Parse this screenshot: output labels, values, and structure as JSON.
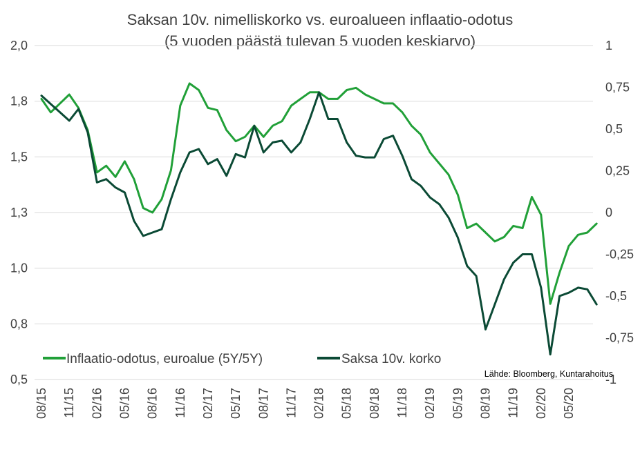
{
  "chart_data": {
    "type": "line",
    "title": "Saksan 10v. nimelliskorko vs. euroalueen inflaatio-odotus",
    "subtitle": "(5 vuoden päästä tulevan 5 vuoden keskiarvo)",
    "source": "Lähde: Bloomberg, Kuntarahoitus",
    "grid": "horizontal",
    "legend_position": "bottom",
    "x_tick_labels": [
      "08/15",
      "11/15",
      "02/16",
      "05/16",
      "08/16",
      "11/16",
      "02/17",
      "05/17",
      "08/17",
      "11/17",
      "02/18",
      "05/18",
      "08/18",
      "11/18",
      "02/19",
      "05/19",
      "08/19",
      "11/19",
      "02/20",
      "05/20"
    ],
    "y_left": {
      "ticks": [
        "2,0",
        "1,8",
        "1,5",
        "1,3",
        "1,0",
        "0,8",
        "0,5"
      ],
      "ylim": [
        0.5,
        2.0
      ]
    },
    "y_right": {
      "ticks": [
        "1",
        "0,75",
        "0,5",
        "0,25",
        "0",
        "-0,25",
        "-0,5",
        "-0,75",
        "-1"
      ],
      "ylim": [
        -1,
        1
      ]
    },
    "series": [
      {
        "name": "Inflaatio-odotus, euroalue (5Y/5Y)",
        "axis": "left",
        "color": "#21a038",
        "x": [
          "08/15",
          "09/15",
          "10/15",
          "11/15",
          "12/15",
          "01/16",
          "02/16",
          "03/16",
          "04/16",
          "05/16",
          "06/16",
          "07/16",
          "08/16",
          "09/16",
          "10/16",
          "11/16",
          "12/16",
          "01/17",
          "02/17",
          "03/17",
          "04/17",
          "05/17",
          "06/17",
          "07/17",
          "08/17",
          "09/17",
          "10/17",
          "11/17",
          "12/17",
          "01/18",
          "02/18",
          "03/18",
          "04/18",
          "05/18",
          "06/18",
          "07/18",
          "08/18",
          "09/18",
          "10/18",
          "11/18",
          "12/18",
          "01/19",
          "02/19",
          "03/19",
          "04/19",
          "05/19",
          "06/19",
          "07/19",
          "08/19",
          "09/19",
          "10/19",
          "11/19",
          "12/19",
          "01/20",
          "02/20",
          "03/20",
          "04/20",
          "05/20",
          "06/20",
          "07/20",
          "08/20"
        ],
        "y": [
          1.76,
          1.7,
          1.74,
          1.78,
          1.72,
          1.62,
          1.43,
          1.46,
          1.41,
          1.48,
          1.4,
          1.27,
          1.25,
          1.31,
          1.44,
          1.73,
          1.83,
          1.8,
          1.72,
          1.71,
          1.62,
          1.57,
          1.59,
          1.64,
          1.59,
          1.64,
          1.66,
          1.73,
          1.76,
          1.79,
          1.79,
          1.76,
          1.76,
          1.8,
          1.81,
          1.78,
          1.76,
          1.74,
          1.74,
          1.7,
          1.64,
          1.6,
          1.52,
          1.47,
          1.42,
          1.33,
          1.18,
          1.2,
          1.16,
          1.12,
          1.14,
          1.19,
          1.18,
          1.32,
          1.24,
          0.84,
          0.98,
          1.1,
          1.15,
          1.16,
          1.2
        ]
      },
      {
        "name": "Saksa 10v. korko",
        "axis": "right",
        "color": "#0b4a35",
        "x": [
          "08/15",
          "09/15",
          "10/15",
          "11/15",
          "12/15",
          "01/16",
          "02/16",
          "03/16",
          "04/16",
          "05/16",
          "06/16",
          "07/16",
          "08/16",
          "09/16",
          "10/16",
          "11/16",
          "12/16",
          "01/17",
          "02/17",
          "03/17",
          "04/17",
          "05/17",
          "06/17",
          "07/17",
          "08/17",
          "09/17",
          "10/17",
          "11/17",
          "12/17",
          "01/18",
          "02/18",
          "03/18",
          "04/18",
          "05/18",
          "06/18",
          "07/18",
          "08/18",
          "09/18",
          "10/18",
          "11/18",
          "12/18",
          "01/19",
          "02/19",
          "03/19",
          "04/19",
          "05/19",
          "06/19",
          "07/19",
          "08/19",
          "09/19",
          "10/19",
          "11/19",
          "12/19",
          "01/20",
          "02/20",
          "03/20",
          "04/20",
          "05/20",
          "06/20",
          "07/20",
          "08/20"
        ],
        "y": [
          0.7,
          0.65,
          0.6,
          0.55,
          0.62,
          0.48,
          0.18,
          0.2,
          0.15,
          0.12,
          -0.05,
          -0.14,
          -0.12,
          -0.1,
          0.08,
          0.24,
          0.36,
          0.38,
          0.29,
          0.32,
          0.22,
          0.35,
          0.33,
          0.52,
          0.36,
          0.42,
          0.43,
          0.36,
          0.42,
          0.56,
          0.72,
          0.56,
          0.56,
          0.42,
          0.34,
          0.33,
          0.33,
          0.44,
          0.46,
          0.34,
          0.2,
          0.16,
          0.09,
          0.05,
          -0.03,
          -0.15,
          -0.32,
          -0.38,
          -0.7,
          -0.55,
          -0.4,
          -0.3,
          -0.25,
          -0.25,
          -0.45,
          -0.85,
          -0.5,
          -0.48,
          -0.45,
          -0.46,
          -0.55
        ]
      }
    ]
  }
}
